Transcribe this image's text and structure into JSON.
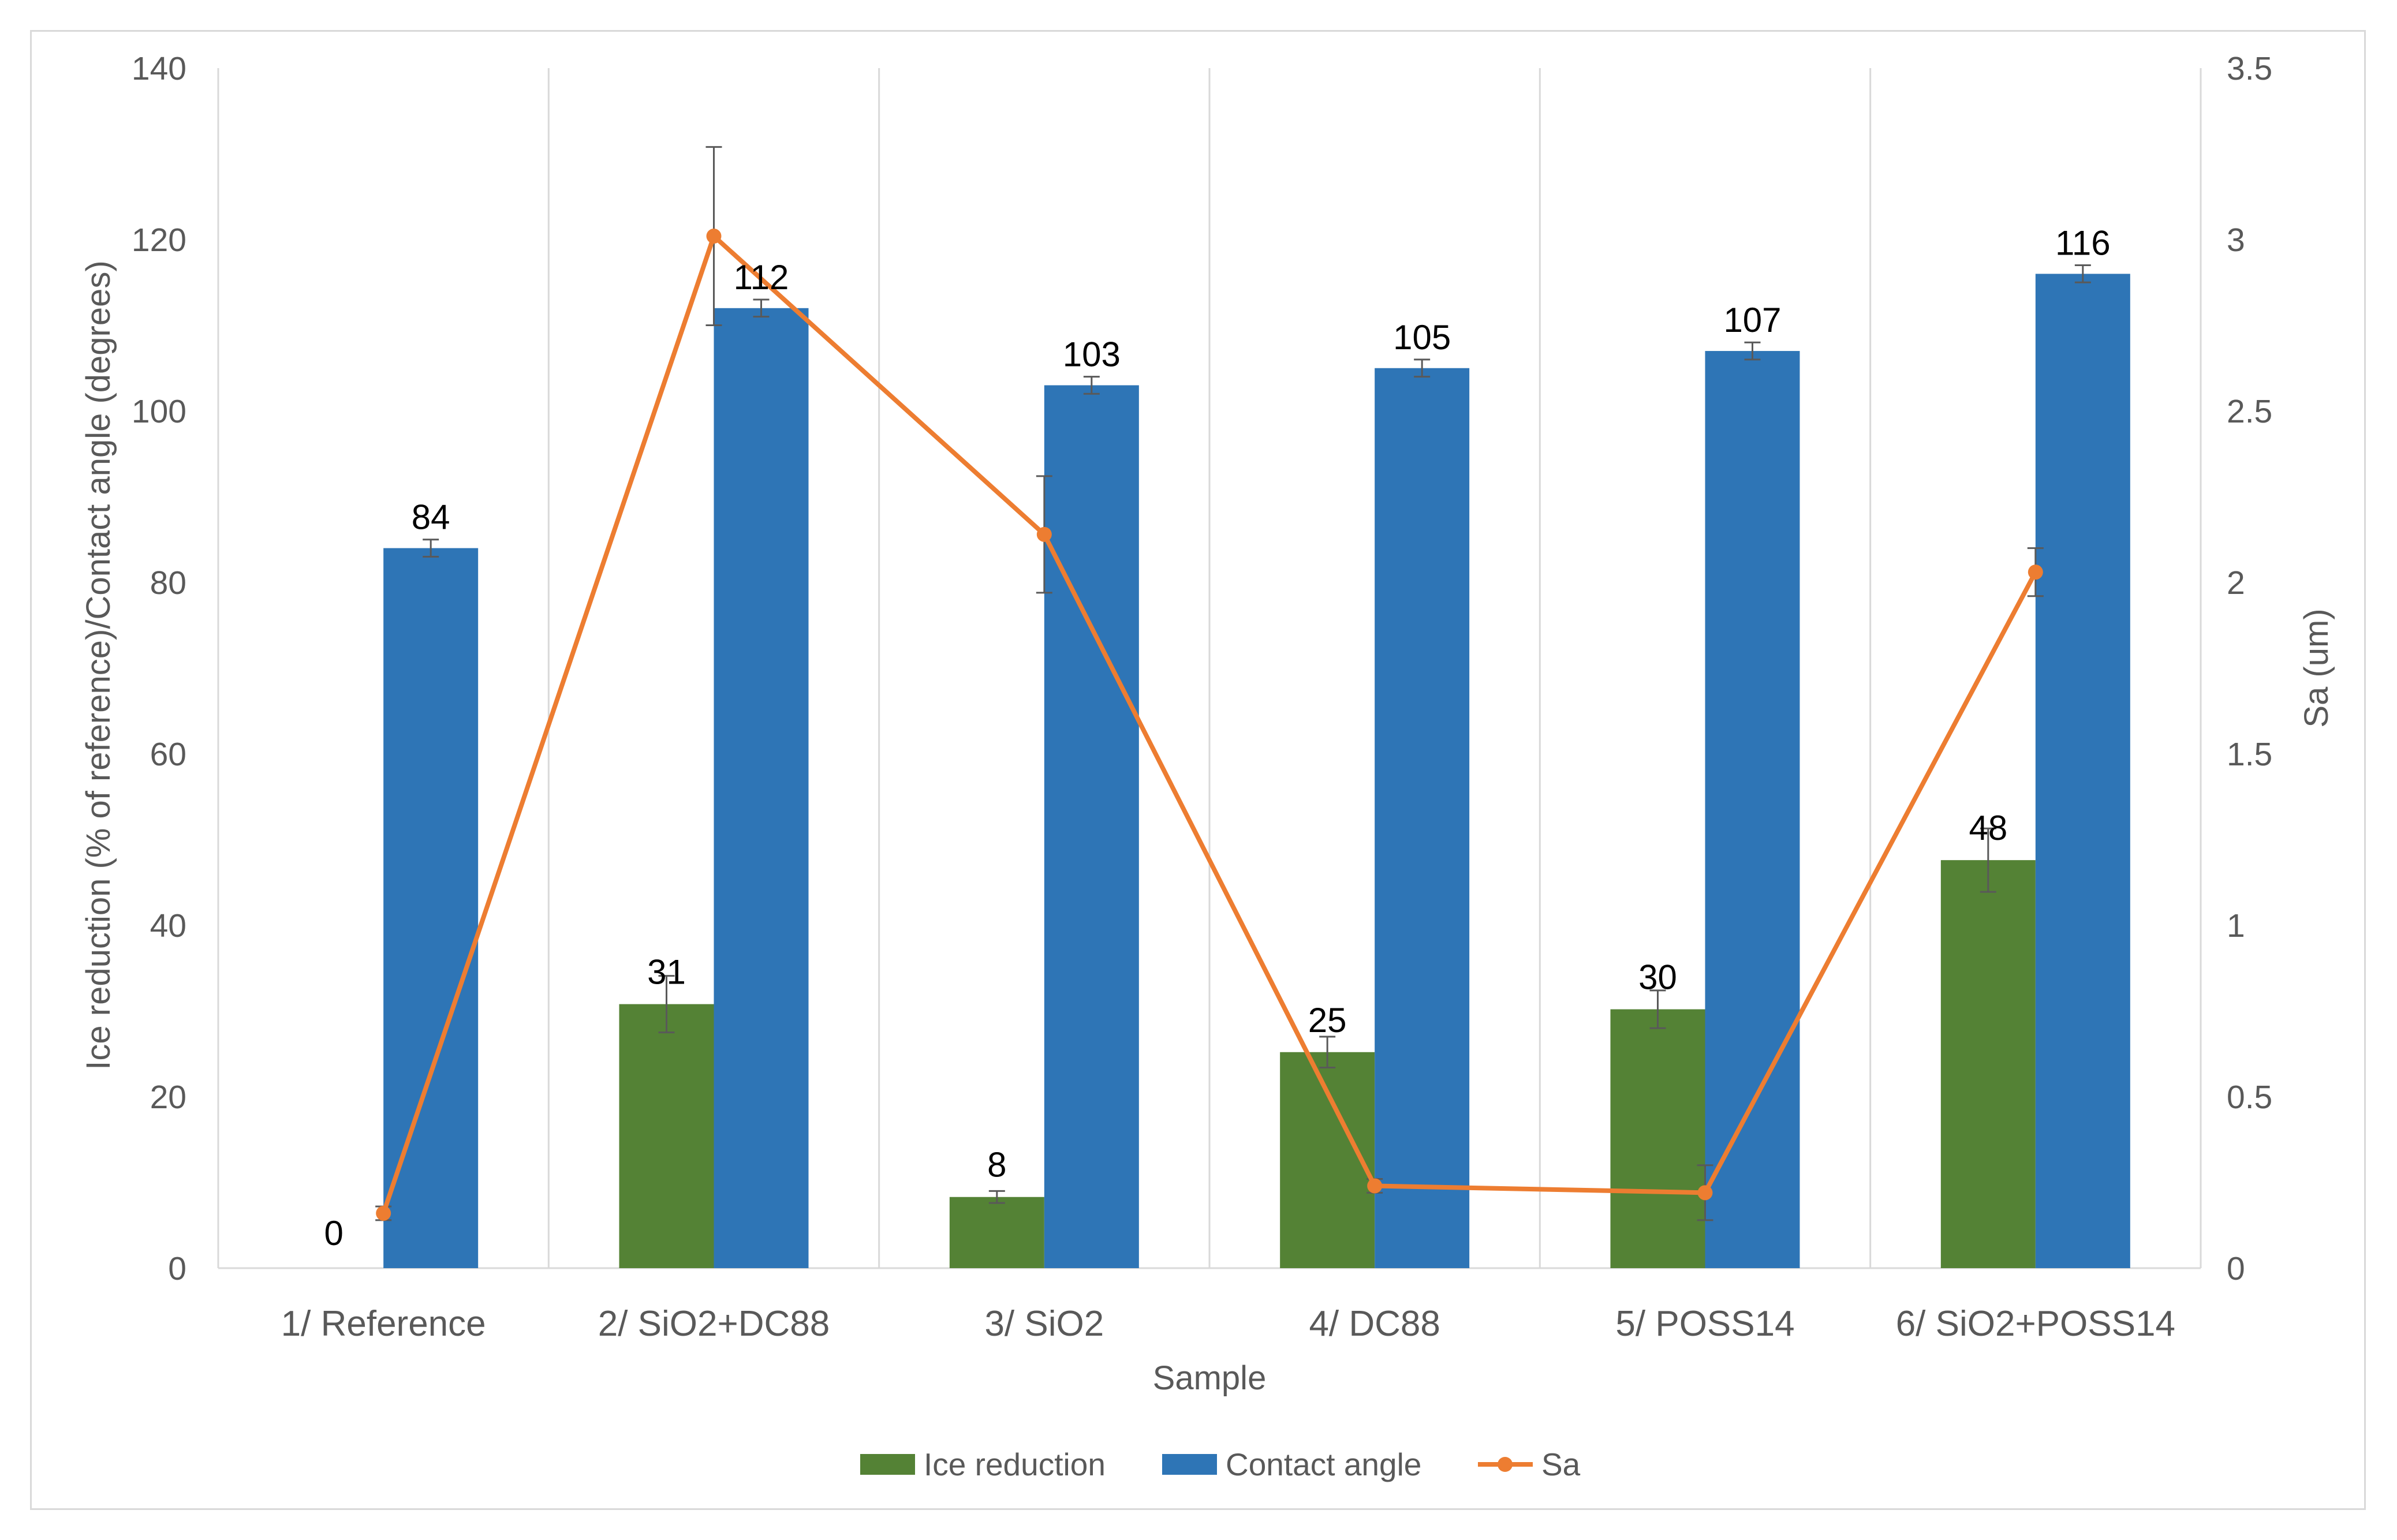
{
  "chart_data": {
    "type": "bar",
    "title": "",
    "categories": [
      "1/ Reference",
      "2/ SiO2+DC88",
      "3/ SiO2",
      "4/ DC88",
      "5/ POSS14",
      "6/ SiO2+POSS14"
    ],
    "xlabel": "Sample",
    "ylabel": "Ice reduction (% of reference)/Contact angle (degrees)",
    "y2label": "Sa (um)",
    "ylim": [
      0,
      140
    ],
    "y2lim": [
      0,
      3.5
    ],
    "yticks": [
      "0",
      "20",
      "40",
      "60",
      "80",
      "100",
      "120",
      "140"
    ],
    "y2ticks": [
      "0",
      "0.5",
      "1",
      "1.5",
      "2",
      "2.5",
      "3",
      "3.5"
    ],
    "grid": "vertical",
    "legend_position": "bottom",
    "series": [
      {
        "name": "Ice reduction",
        "kind": "bar",
        "axis": "left",
        "color": "#548235",
        "values": [
          0,
          30.8,
          8.3,
          25.2,
          30.2,
          47.6
        ],
        "labels": [
          "0",
          "31",
          "8",
          "25",
          "30",
          "48"
        ],
        "error": [
          0,
          3.3,
          0.7,
          1.8,
          2.2,
          3.7
        ]
      },
      {
        "name": "Contact angle",
        "kind": "bar",
        "axis": "left",
        "color": "#2e75b6",
        "values": [
          84,
          112,
          103,
          105,
          107,
          116
        ],
        "labels": [
          "84",
          "112",
          "103",
          "105",
          "107",
          "116"
        ],
        "error": [
          1,
          1,
          1,
          1,
          1,
          1
        ]
      },
      {
        "name": "Sa",
        "kind": "line",
        "axis": "right",
        "color": "#ed7d31",
        "values": [
          0.16,
          3.01,
          2.14,
          0.24,
          0.22,
          2.03
        ],
        "error": [
          0.02,
          0.26,
          0.17,
          0.02,
          0.08,
          0.07
        ]
      }
    ]
  }
}
